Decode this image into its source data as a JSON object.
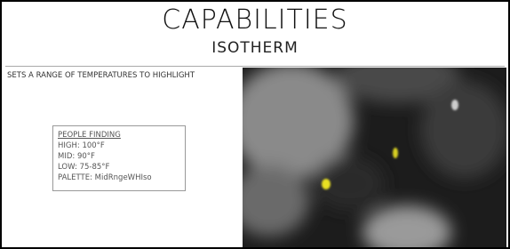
{
  "header": {
    "title": "CAPABILITIES",
    "subtitle": "ISOTHERM"
  },
  "description": "SETS A RANGE OF TEMPERATURES TO HIGHLIGHT",
  "settings_box": {
    "heading": "PEOPLE FINDING",
    "lines": [
      "HIGH: 100°F",
      "MID: 90°F",
      "LOW: 75-85°F",
      "PALETTE: MidRngeWHIso"
    ]
  }
}
